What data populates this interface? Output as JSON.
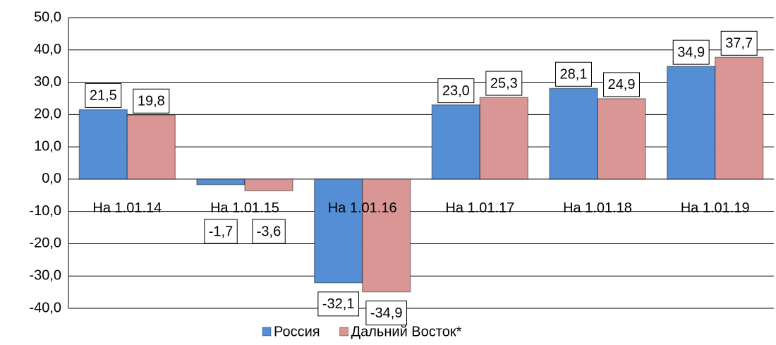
{
  "chart_data": {
    "type": "bar",
    "categories": [
      "На 1.01.14",
      "На 1.01.15",
      "На 1.01.16",
      "На 1.01.17",
      "На 1.01.18",
      "На 1.01.19"
    ],
    "series": [
      {
        "name": "Россия",
        "color": "#558ed5",
        "values": [
          21.5,
          -1.7,
          -32.1,
          23.0,
          28.1,
          34.9
        ],
        "value_labels": [
          "21,5",
          "-1,7",
          "-32,1",
          "23,0",
          "28,1",
          "34,9"
        ]
      },
      {
        "name": "Дальний Восток*",
        "color": "#d99694",
        "values": [
          19.8,
          -3.6,
          -34.9,
          25.3,
          24.9,
          37.7
        ],
        "value_labels": [
          "19,8",
          "-3,6",
          "-34,9",
          "25,3",
          "24,9",
          "37,7"
        ]
      }
    ],
    "ylim": [
      -40,
      50
    ],
    "yticks": [
      {
        "value": -40,
        "label": "-40,0"
      },
      {
        "value": -30,
        "label": "-30,0"
      },
      {
        "value": -20,
        "label": "-20,0"
      },
      {
        "value": -10,
        "label": "-10,0"
      },
      {
        "value": 0,
        "label": "0,0"
      },
      {
        "value": 10,
        "label": "10,0"
      },
      {
        "value": 20,
        "label": "20,0"
      },
      {
        "value": 30,
        "label": "30,0"
      },
      {
        "value": 40,
        "label": "40,0"
      },
      {
        "value": 50,
        "label": "50,0"
      }
    ],
    "grid": true,
    "legend": "bottom"
  }
}
